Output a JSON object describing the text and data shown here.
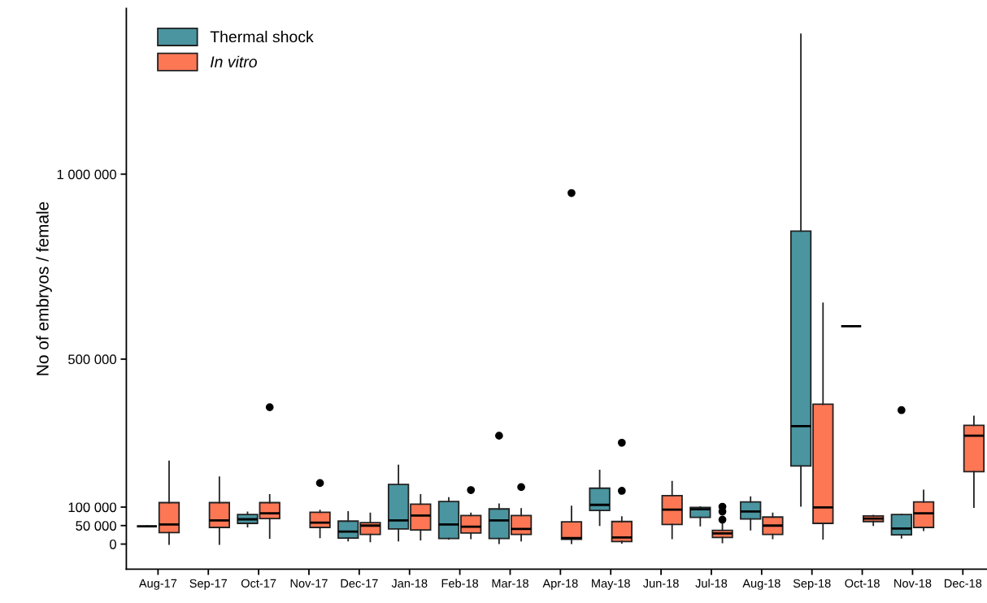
{
  "chart_data": {
    "type": "box",
    "ylabel": "No of embryos / female",
    "categories": [
      "Aug-17",
      "Sep-17",
      "Oct-17",
      "Nov-17",
      "Dec-17",
      "Jan-18",
      "Feb-18",
      "Mar-18",
      "Apr-18",
      "May-18",
      "Jun-18",
      "Jul-18",
      "Aug-18",
      "Sep-18",
      "Oct-18",
      "Nov-18",
      "Dec-18"
    ],
    "ylim": [
      -68000,
      1448000
    ],
    "yticks": [
      0,
      {
        "value": 50000,
        "label": "50 000"
      },
      {
        "value": 100000,
        "label": "100 000"
      },
      {
        "value": 500000,
        "label": "500 000"
      },
      {
        "value": 1000000,
        "label": "1 000 000"
      }
    ],
    "grid": false,
    "legend": "top left",
    "series": [
      {
        "name": "Thermal shock",
        "color": "#4a95a0",
        "boxes": [
          {
            "low": 48000,
            "q1": 48000,
            "median": 48000,
            "q3": 48000,
            "high": 48000
          },
          null,
          {
            "low": 47000,
            "q1": 56000,
            "median": 67000,
            "q3": 80000,
            "high": 86000
          },
          null,
          {
            "low": 9000,
            "q1": 16000,
            "median": 34000,
            "q3": 62000,
            "high": 87000
          },
          {
            "low": 9000,
            "q1": 41000,
            "median": 64000,
            "q3": 161000,
            "high": 213000
          },
          {
            "low": 14000,
            "q1": 15000,
            "median": 53000,
            "q3": 115000,
            "high": 125000
          },
          {
            "low": 2000,
            "q1": 15000,
            "median": 64000,
            "q3": 95000,
            "high": 108000,
            "outliers": [
              293000
            ]
          },
          null,
          {
            "low": 51000,
            "q1": 91000,
            "median": 106000,
            "q3": 151000,
            "high": 199000
          },
          null,
          {
            "low": 50000,
            "q1": 72000,
            "median": 94000,
            "q3": 99000,
            "high": 100000
          },
          {
            "low": 39000,
            "q1": 68000,
            "median": 88000,
            "q3": 114000,
            "high": 127000
          },
          {
            "low": 103000,
            "q1": 211000,
            "median": 319000,
            "q3": 846000,
            "high": 1378000
          },
          {
            "low": 589000,
            "q1": 589000,
            "median": 589000,
            "q3": 589000,
            "high": 589000
          },
          {
            "low": 17000,
            "q1": 25000,
            "median": 42000,
            "q3": 80000,
            "high": 80000,
            "outliers": [
              362000
            ]
          },
          null
        ]
      },
      {
        "name": "In vitro",
        "color": "#fe7755",
        "boxes": [
          {
            "low": 0,
            "q1": 31000,
            "median": 53000,
            "q3": 112000,
            "high": 224000
          },
          {
            "low": 0,
            "q1": 45000,
            "median": 64000,
            "q3": 112000,
            "high": 181000
          },
          {
            "low": 16000,
            "q1": 69000,
            "median": 83000,
            "q3": 112000,
            "high": 133000,
            "outliers": [
              370000
            ]
          },
          {
            "low": 18000,
            "q1": 45000,
            "median": 58000,
            "q3": 86000,
            "high": 91000,
            "outliers": [
              165000
            ]
          },
          {
            "low": 7000,
            "q1": 26000,
            "median": 50000,
            "q3": 58000,
            "high": 83000
          },
          {
            "low": 12000,
            "q1": 38000,
            "median": 77000,
            "q3": 108000,
            "high": 133000
          },
          {
            "low": 15000,
            "q1": 30000,
            "median": 47000,
            "q3": 77000,
            "high": 83000,
            "outliers": [
              146000
            ]
          },
          {
            "low": 9000,
            "q1": 26000,
            "median": 41000,
            "q3": 77000,
            "high": 95000,
            "outliers": [
              154000
            ]
          },
          {
            "low": 2000,
            "q1": 13000,
            "median": 16000,
            "q3": 60000,
            "high": 102000,
            "outliers": [
              949000
            ]
          },
          {
            "low": 3000,
            "q1": 7000,
            "median": 18000,
            "q3": 61000,
            "high": 73000,
            "outliers": [
              144000,
              274000
            ]
          },
          {
            "low": 15000,
            "q1": 53000,
            "median": 93000,
            "q3": 131000,
            "high": 169000
          },
          {
            "low": 4000,
            "q1": 18000,
            "median": 29000,
            "q3": 37000,
            "high": 59000,
            "outliers": [
              66000,
              88000,
              101000
            ]
          },
          {
            "low": 15000,
            "q1": 26000,
            "median": 50000,
            "q3": 73000,
            "high": 83000
          },
          {
            "low": 14000,
            "q1": 56000,
            "median": 99000,
            "q3": 378000,
            "high": 651000
          },
          {
            "low": 51000,
            "q1": 61000,
            "median": 69000,
            "q3": 76000,
            "high": 77000
          },
          {
            "low": 37000,
            "q1": 45000,
            "median": 83000,
            "q3": 114000,
            "high": 145000
          },
          {
            "low": 100000,
            "q1": 196000,
            "median": 293000,
            "q3": 321000,
            "high": 345000
          }
        ]
      }
    ]
  }
}
